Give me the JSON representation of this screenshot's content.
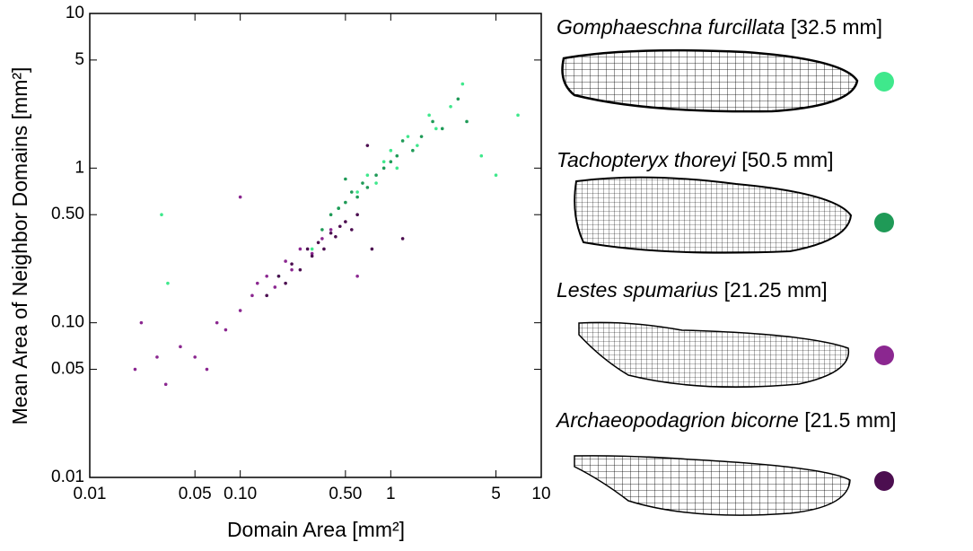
{
  "chart_data": {
    "type": "scatter",
    "xlabel": "Domain Area [mm²]",
    "ylabel": "Mean Area of Neighbor Domains [mm²]",
    "xscale": "log",
    "yscale": "log",
    "xlim": [
      0.01,
      10
    ],
    "ylim": [
      0.01,
      10
    ],
    "xticks": [
      0.01,
      0.05,
      {
        "value": 0.1,
        "label": "0.10"
      },
      {
        "value": 0.5,
        "label": "0.50"
      },
      1,
      5,
      10
    ],
    "yticks": [
      0.01,
      0.05,
      {
        "value": 0.1,
        "label": "0.10"
      },
      {
        "value": 0.5,
        "label": "0.50"
      },
      1,
      5,
      10
    ],
    "series": [
      {
        "name": "Gomphaeschna furcillata",
        "length": "[32.5 mm]",
        "color": "#3fe88c",
        "x": [
          0.03,
          0.033,
          0.18,
          0.3,
          0.45,
          0.6,
          0.7,
          0.8,
          0.9,
          1.0,
          1.1,
          1.3,
          1.5,
          1.8,
          2.0,
          2.5,
          3.0,
          4.0,
          5.0,
          7.0
        ],
        "values": [
          0.5,
          0.18,
          0.2,
          0.3,
          0.55,
          0.7,
          0.9,
          0.8,
          1.1,
          1.3,
          1.0,
          1.6,
          1.4,
          2.2,
          1.8,
          2.5,
          3.5,
          1.2,
          0.9,
          2.2
        ]
      },
      {
        "name": "Tachopteryx thoreyi",
        "length": "[50.5 mm]",
        "color": "#1f9a57",
        "x": [
          0.35,
          0.4,
          0.45,
          0.5,
          0.55,
          0.6,
          0.65,
          0.7,
          0.8,
          0.9,
          1.0,
          1.1,
          1.2,
          1.4,
          1.6,
          1.9,
          2.2,
          2.8,
          3.2,
          0.5
        ],
        "values": [
          0.4,
          0.5,
          0.55,
          0.6,
          0.7,
          0.65,
          0.8,
          0.75,
          0.9,
          1.0,
          1.1,
          1.2,
          1.5,
          1.3,
          1.6,
          2.0,
          1.8,
          2.8,
          2.0,
          0.85
        ]
      },
      {
        "name": "Lestes spumarius",
        "length": "[21.25 mm]",
        "color": "#8b2790",
        "x": [
          0.02,
          0.022,
          0.028,
          0.032,
          0.04,
          0.05,
          0.06,
          0.07,
          0.08,
          0.1,
          0.12,
          0.13,
          0.15,
          0.17,
          0.2,
          0.22,
          0.25,
          0.3,
          0.35,
          0.4,
          0.1,
          0.6
        ],
        "values": [
          0.05,
          0.1,
          0.06,
          0.04,
          0.07,
          0.06,
          0.05,
          0.1,
          0.09,
          0.12,
          0.15,
          0.18,
          0.2,
          0.17,
          0.25,
          0.22,
          0.3,
          0.28,
          0.35,
          0.4,
          0.65,
          0.2
        ]
      },
      {
        "name": "Archaeopodagrion bicorne",
        "length": "[21.5 mm]",
        "color": "#4c0e50",
        "x": [
          0.15,
          0.18,
          0.2,
          0.22,
          0.25,
          0.28,
          0.3,
          0.33,
          0.36,
          0.4,
          0.43,
          0.46,
          0.5,
          0.55,
          0.6,
          0.75,
          1.2,
          0.7
        ],
        "values": [
          0.15,
          0.2,
          0.18,
          0.24,
          0.22,
          0.3,
          0.27,
          0.33,
          0.3,
          0.38,
          0.36,
          0.42,
          0.45,
          0.4,
          0.5,
          0.3,
          0.35,
          1.4
        ]
      }
    ]
  }
}
